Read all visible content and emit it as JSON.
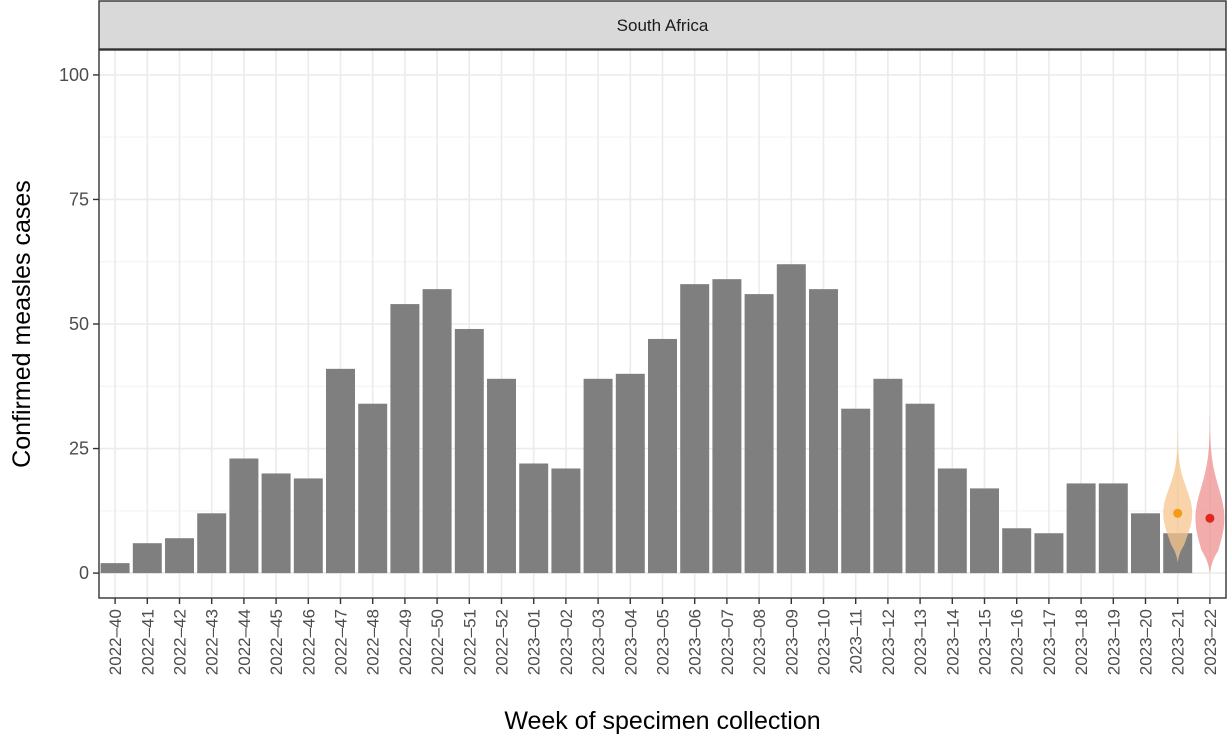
{
  "chart_data": {
    "type": "bar",
    "facet_title": "South Africa",
    "xlabel": "Week of specimen collection",
    "ylabel": "Confirmed measles cases",
    "ylim": [
      -5,
      105
    ],
    "yticks": [
      0,
      25,
      50,
      75,
      100
    ],
    "grid": true,
    "categories": [
      "2022–40",
      "2022–41",
      "2022–42",
      "2022–43",
      "2022–44",
      "2022–45",
      "2022–46",
      "2022–47",
      "2022–48",
      "2022–49",
      "2022–50",
      "2022–51",
      "2022–52",
      "2023–01",
      "2023–02",
      "2023–03",
      "2023–04",
      "2023–05",
      "2023–06",
      "2023–07",
      "2023–08",
      "2023–09",
      "2023–10",
      "2023–11",
      "2023–12",
      "2023–13",
      "2023–14",
      "2023–15",
      "2023–16",
      "2023–17",
      "2023–18",
      "2023–19",
      "2023–20",
      "2023–21",
      "2023–22"
    ],
    "values": [
      2,
      6,
      7,
      12,
      23,
      20,
      19,
      41,
      34,
      54,
      57,
      49,
      39,
      22,
      21,
      39,
      40,
      47,
      58,
      59,
      56,
      62,
      57,
      33,
      39,
      34,
      21,
      17,
      9,
      8,
      18,
      18,
      12,
      8,
      null
    ],
    "bar_color": "#7f7f7f",
    "nowcasts": [
      {
        "category": "2023–21",
        "point": 12,
        "min": 2,
        "max": 32,
        "fill": "#f7c48c",
        "point_color": "#f39c12"
      },
      {
        "category": "2023–22",
        "point": 11,
        "min": 0,
        "max": 37,
        "fill": "#ee9090",
        "point_color": "#e0281e"
      }
    ]
  }
}
